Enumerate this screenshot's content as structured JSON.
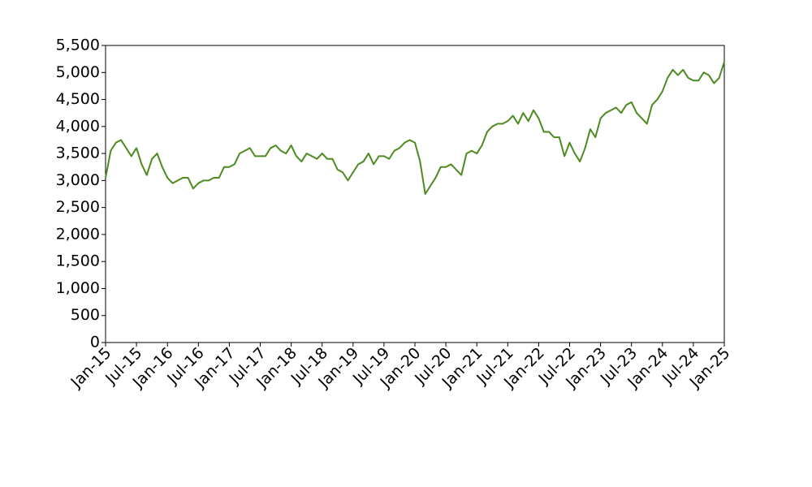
{
  "chart_data": {
    "type": "line",
    "x": [
      "Jan-15",
      "Feb-15",
      "Mar-15",
      "Apr-15",
      "May-15",
      "Jun-15",
      "Jul-15",
      "Aug-15",
      "Sep-15",
      "Oct-15",
      "Nov-15",
      "Dec-15",
      "Jan-16",
      "Feb-16",
      "Mar-16",
      "Apr-16",
      "May-16",
      "Jun-16",
      "Jul-16",
      "Aug-16",
      "Sep-16",
      "Oct-16",
      "Nov-16",
      "Dec-16",
      "Jan-17",
      "Feb-17",
      "Mar-17",
      "Apr-17",
      "May-17",
      "Jun-17",
      "Jul-17",
      "Aug-17",
      "Sep-17",
      "Oct-17",
      "Nov-17",
      "Dec-17",
      "Jan-18",
      "Feb-18",
      "Mar-18",
      "Apr-18",
      "May-18",
      "Jun-18",
      "Jul-18",
      "Aug-18",
      "Sep-18",
      "Oct-18",
      "Nov-18",
      "Dec-18",
      "Jan-19",
      "Feb-19",
      "Mar-19",
      "Apr-19",
      "May-19",
      "Jun-19",
      "Jul-19",
      "Aug-19",
      "Sep-19",
      "Oct-19",
      "Nov-19",
      "Dec-19",
      "Jan-20",
      "Feb-20",
      "Mar-20",
      "Apr-20",
      "May-20",
      "Jun-20",
      "Jul-20",
      "Aug-20",
      "Sep-20",
      "Oct-20",
      "Nov-20",
      "Dec-20",
      "Jan-21",
      "Feb-21",
      "Mar-21",
      "Apr-21",
      "May-21",
      "Jun-21",
      "Jul-21",
      "Aug-21",
      "Sep-21",
      "Oct-21",
      "Nov-21",
      "Dec-21",
      "Jan-22",
      "Feb-22",
      "Mar-22",
      "Apr-22",
      "May-22",
      "Jun-22",
      "Jul-22",
      "Aug-22",
      "Sep-22",
      "Oct-22",
      "Nov-22",
      "Dec-22",
      "Jan-23",
      "Feb-23",
      "Mar-23",
      "Apr-23",
      "May-23",
      "Jun-23",
      "Jul-23",
      "Aug-23",
      "Sep-23",
      "Oct-23",
      "Nov-23",
      "Dec-23",
      "Jan-24",
      "Feb-24",
      "Mar-24",
      "Apr-24",
      "May-24",
      "Jun-24",
      "Jul-24",
      "Aug-24",
      "Sep-24",
      "Oct-24",
      "Nov-24",
      "Dec-24",
      "Jan-25"
    ],
    "series": [
      {
        "color": "#4d8a1f",
        "values": [
          3050,
          3550,
          3700,
          3750,
          3600,
          3450,
          3600,
          3300,
          3100,
          3400,
          3500,
          3250,
          3050,
          2950,
          3000,
          3050,
          3050,
          2850,
          2950,
          3000,
          3000,
          3050,
          3050,
          3250,
          3250,
          3300,
          3500,
          3550,
          3600,
          3450,
          3450,
          3450,
          3600,
          3650,
          3550,
          3500,
          3650,
          3450,
          3350,
          3500,
          3450,
          3400,
          3500,
          3400,
          3400,
          3200,
          3150,
          3000,
          3150,
          3300,
          3350,
          3500,
          3300,
          3450,
          3450,
          3400,
          3550,
          3600,
          3700,
          3750,
          3700,
          3350,
          2750,
          2900,
          3050,
          3250,
          3250,
          3300,
          3200,
          3100,
          3500,
          3550,
          3500,
          3650,
          3900,
          4000,
          4050,
          4050,
          4100,
          4200,
          4050,
          4250,
          4100,
          4300,
          4150,
          3900,
          3900,
          3800,
          3800,
          3450,
          3700,
          3500,
          3350,
          3600,
          3950,
          3800,
          4150,
          4250,
          4300,
          4350,
          4250,
          4400,
          4450,
          4250,
          4150,
          4050,
          4400,
          4500,
          4650,
          4900,
          5050,
          4950,
          5050,
          4900,
          4850,
          4850,
          5000,
          4950,
          4800,
          4900,
          5200
        ]
      }
    ],
    "xticks": [
      "Jan-15",
      "Jul-15",
      "Jan-16",
      "Jul-16",
      "Jan-17",
      "Jul-17",
      "Jan-18",
      "Jul-18",
      "Jan-19",
      "Jul-19",
      "Jan-20",
      "Jul-20",
      "Jan-21",
      "Jul-21",
      "Jan-22",
      "Jul-22",
      "Jan-23",
      "Jul-23",
      "Jan-24",
      "Jul-24",
      "Jan-25"
    ],
    "ylim": [
      0,
      5500
    ],
    "yticks": [
      0,
      500,
      {
        "value": 1000,
        "label": "1,000"
      },
      {
        "value": 1500,
        "label": "1,500"
      },
      {
        "value": 2000,
        "label": "2,000"
      },
      {
        "value": 2500,
        "label": "2,500"
      },
      {
        "value": 3000,
        "label": "3,000"
      },
      {
        "value": 3500,
        "label": "3,500"
      },
      {
        "value": 4000,
        "label": "4,000"
      },
      {
        "value": 4500,
        "label": "4,500"
      },
      {
        "value": 5000,
        "label": "5,000"
      },
      {
        "value": 5500,
        "label": "5,500"
      }
    ],
    "grid": false
  }
}
